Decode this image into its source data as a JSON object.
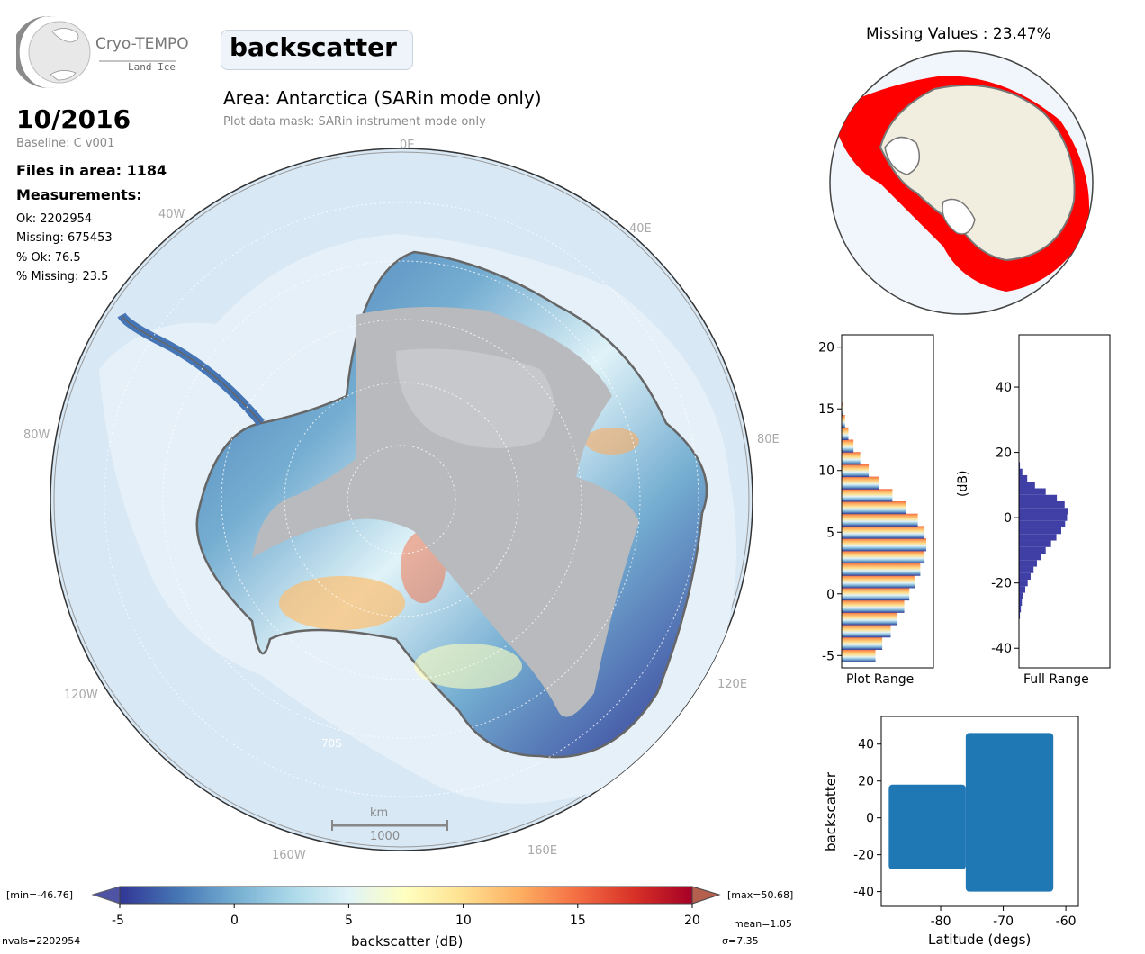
{
  "logo": {
    "name": "Cryo-TEMPO",
    "sub": "Land Ice"
  },
  "header": {
    "variable": "backscatter",
    "area": "Area: Antarctica (SARin mode only)",
    "mask": "Plot data mask: SARin instrument mode only"
  },
  "info": {
    "date": "10/2016",
    "baseline": "Baseline: C v001",
    "files": "Files in area: 1184",
    "measurements_title": "Measurements:",
    "ok": "Ok: 2202954",
    "missing": "Missing: 675453",
    "pct_ok": "% Ok: 76.5",
    "pct_missing": "% Missing: 23.5"
  },
  "map": {
    "lon_labels": [
      "0E",
      "40E",
      "80E",
      "120E",
      "160E",
      "160W",
      "120W",
      "80W",
      "40W"
    ],
    "lat_label": "70S",
    "scale_unit": "km",
    "scale_value": "1000"
  },
  "inset": {
    "title": "Missing Values : 23.47%"
  },
  "colorbar": {
    "label": "backscatter (dB)",
    "ticks": [
      "-5",
      "0",
      "5",
      "10",
      "15",
      "20"
    ],
    "min_label": "[min=-46.76]",
    "max_label": "[max=50.68]",
    "nvals": "nvals=2202954",
    "mean": "mean=1.05",
    "sigma": "σ=7.35",
    "colors": [
      "#313695",
      "#4575b4",
      "#74add1",
      "#abd9e9",
      "#e0f3f8",
      "#ffffbf",
      "#fee090",
      "#fdae61",
      "#f46d43",
      "#d73027",
      "#a50026"
    ]
  },
  "chart_data": [
    {
      "type": "bar",
      "orientation": "horizontal",
      "xlabel": "Plot Range",
      "ylim": [
        -6,
        21
      ],
      "yticks": [
        "20",
        "15",
        "10",
        "5",
        "0",
        "-5"
      ],
      "y": [
        -5,
        -4,
        -3,
        -2,
        -1,
        0,
        1,
        2,
        3,
        4,
        5,
        6,
        7,
        8,
        9,
        10,
        11,
        12,
        13,
        14,
        15
      ],
      "values": [
        0.4,
        0.48,
        0.58,
        0.66,
        0.74,
        0.8,
        0.87,
        0.93,
        0.98,
        1.0,
        0.98,
        0.9,
        0.76,
        0.6,
        0.44,
        0.32,
        0.22,
        0.14,
        0.08,
        0.04,
        0.01
      ]
    },
    {
      "type": "bar",
      "orientation": "horizontal",
      "xlabel": "Full Range",
      "ylabel": "(dB)",
      "ylim": [
        -46,
        56
      ],
      "yticks": [
        "40",
        "20",
        "0",
        "-20",
        "-40"
      ],
      "y": [
        -30,
        -28,
        -26,
        -24,
        -22,
        -20,
        -18,
        -16,
        -14,
        -12,
        -10,
        -8,
        -6,
        -4,
        -2,
        0,
        2,
        4,
        6,
        8,
        10,
        12,
        14,
        16
      ],
      "values": [
        0.02,
        0.04,
        0.06,
        0.09,
        0.13,
        0.18,
        0.24,
        0.3,
        0.37,
        0.45,
        0.55,
        0.66,
        0.77,
        0.87,
        0.95,
        0.99,
        1.0,
        0.94,
        0.78,
        0.55,
        0.33,
        0.17,
        0.07,
        0.02
      ]
    },
    {
      "type": "scatter",
      "xlabel": "Latitude (degs)",
      "ylabel": "backscatter",
      "xlim": [
        -89.5,
        -58
      ],
      "ylim": [
        -48,
        55
      ],
      "xticks": [
        "-80",
        "-70",
        "-60"
      ],
      "yticks": [
        "40",
        "20",
        "0",
        "-20",
        "-40"
      ],
      "series": [
        {
          "x_range": [
            -88.3,
            -76
          ],
          "y_range": [
            -28,
            18
          ]
        },
        {
          "x_range": [
            -76,
            -62
          ],
          "y_range": [
            -40,
            46
          ]
        }
      ]
    }
  ]
}
